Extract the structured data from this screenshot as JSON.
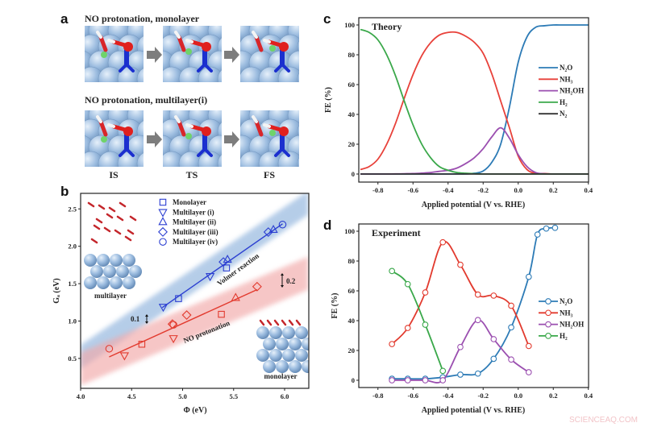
{
  "panel_a": {
    "letter": "a",
    "row1_title": "NO protonation, monolayer",
    "row2_title": "NO protonation, multilayer(i)",
    "states": [
      "IS",
      "TS",
      "FS"
    ]
  },
  "chart_data": [
    {
      "panel": "b",
      "type": "scatter",
      "xlabel": "Φ (eV)",
      "ylabel": "Gₐ (eV)",
      "xlim": [
        4.0,
        6.23
      ],
      "ylim": [
        0.1,
        2.7
      ],
      "xticks": [
        4.0,
        4.5,
        5.0,
        5.5,
        6.0
      ],
      "yticks": [
        0.5,
        1.0,
        1.5,
        2.0,
        2.5
      ],
      "legend": "top-center",
      "colors": {
        "volmer": "#2b3ed1",
        "no_protonation": "#e23a2e",
        "volmer_band": "#8fb3dd",
        "no_protonation_band": "#f2a9a9"
      },
      "series": [
        {
          "name": "Monolayer",
          "marker": "square",
          "volmer": [
            [
              4.96,
              1.3
            ],
            [
              5.43,
              1.71
            ]
          ],
          "no_protonation": [
            [
              4.6,
              0.69
            ],
            [
              5.38,
              1.09
            ]
          ]
        },
        {
          "name": "Multilayer (i)",
          "marker": "triangle-down",
          "volmer": [
            [
              4.81,
              1.19
            ],
            [
              5.27,
              1.6
            ]
          ],
          "no_protonation": [
            [
              4.43,
              0.54
            ],
            [
              4.91,
              0.77
            ]
          ]
        },
        {
          "name": "Multilayer (ii)",
          "marker": "triangle-up",
          "volmer": [
            [
              5.44,
              1.82
            ],
            [
              5.89,
              2.22
            ]
          ],
          "no_protonation": [
            [
              5.52,
              1.31
            ]
          ]
        },
        {
          "name": "Multilayer (iii)",
          "marker": "diamond",
          "volmer": [
            [
              5.4,
              1.79
            ],
            [
              5.84,
              2.19
            ]
          ],
          "no_protonation": [
            [
              4.9,
              0.96
            ],
            [
              5.04,
              1.08
            ],
            [
              5.73,
              1.46
            ]
          ]
        },
        {
          "name": "Multilayer (iv)",
          "marker": "circle",
          "volmer": [
            [
              5.98,
              2.29
            ]
          ],
          "no_protonation": [
            [
              4.28,
              0.63
            ],
            [
              4.91,
              0.95
            ]
          ]
        }
      ],
      "fits": [
        {
          "reaction": "volmer",
          "x": [
            4.8,
            5.98
          ],
          "y": [
            1.18,
            2.3
          ]
        },
        {
          "reaction": "no_protonation",
          "x": [
            4.28,
            5.73
          ],
          "y": [
            0.52,
            1.42
          ]
        }
      ],
      "bands": [
        {
          "reaction": "volmer",
          "x": [
            4.0,
            6.23
          ],
          "y": [
            0.52,
            2.58
          ],
          "width": 0.16
        },
        {
          "reaction": "no_protonation",
          "x": [
            4.0,
            6.23
          ],
          "y": [
            0.36,
            1.64
          ],
          "width": 0.22
        }
      ],
      "annotations": {
        "volmer": "Volmer reaction",
        "no_protonation": "NO protonation",
        "spread_volmer": "0.1",
        "spread_no": "0.2",
        "inset_multilayer": "multilayer",
        "inset_monolayer": "monolayer"
      }
    },
    {
      "panel": "c",
      "type": "line",
      "title": "Theory",
      "xlabel": "Applied potential (V vs. RHE)",
      "ylabel": "FE (%)",
      "xlim": [
        -0.91,
        0.4
      ],
      "ylim": [
        -5,
        103
      ],
      "xticks": [
        -0.8,
        -0.6,
        -0.4,
        -0.2,
        0.0,
        0.2,
        0.4
      ],
      "yticks": [
        0,
        20,
        40,
        60,
        80,
        100
      ],
      "legend": "right",
      "x": [
        -0.9,
        -0.85,
        -0.8,
        -0.75,
        -0.7,
        -0.65,
        -0.6,
        -0.55,
        -0.5,
        -0.45,
        -0.4,
        -0.35,
        -0.3,
        -0.25,
        -0.2,
        -0.15,
        -0.1,
        -0.05,
        0,
        0.05,
        0.1,
        0.15,
        0.2,
        0.25,
        0.3,
        0.35,
        0.4
      ],
      "series": [
        {
          "name": "N₂O",
          "color": "#2d7bb6",
          "values": [
            0,
            0,
            0,
            0,
            0,
            0,
            0,
            0,
            0,
            0,
            0,
            0,
            0,
            0.5,
            2,
            8,
            20,
            45,
            75,
            92,
            98.5,
            99.5,
            100,
            100,
            100,
            100,
            100
          ]
        },
        {
          "name": "NH₃",
          "color": "#e8413a",
          "values": [
            3,
            5,
            10,
            20,
            33.9,
            50.8,
            66.7,
            79.4,
            88,
            93.2,
            95,
            95,
            92.5,
            88.3,
            81,
            67,
            49,
            31,
            12,
            3,
            0.5,
            0.3,
            0,
            0,
            0,
            0,
            0
          ]
        },
        {
          "name": "NH₂OH",
          "color": "#9b4fb0",
          "values": [
            0,
            0,
            0,
            0,
            0.1,
            0.2,
            0.3,
            0.6,
            1,
            1.8,
            2.5,
            4,
            7,
            11,
            17,
            25,
            31,
            24,
            13,
            5,
            1,
            0.2,
            0,
            0,
            0,
            0,
            0
          ]
        },
        {
          "name": "H₂",
          "color": "#3aa84a",
          "values": [
            97,
            95,
            90,
            80,
            66,
            49,
            33,
            20,
            11,
            5,
            2.5,
            1,
            0.5,
            0.2,
            0,
            0,
            0,
            0,
            0,
            0,
            0,
            0,
            0,
            0,
            0,
            0,
            0
          ]
        },
        {
          "name": "N₂",
          "color": "#333333",
          "values": [
            0,
            0,
            0,
            0,
            0,
            0,
            0,
            0,
            0,
            0,
            0,
            0,
            0,
            0,
            0,
            0,
            0,
            0,
            0,
            0,
            0,
            0,
            0,
            0,
            0,
            0,
            0
          ]
        }
      ]
    },
    {
      "panel": "d",
      "type": "line",
      "title": "Experiment",
      "xlabel": "Applied potential (V vs. RHE)",
      "ylabel": "FE (%)",
      "xlim": [
        -0.91,
        0.4
      ],
      "ylim": [
        -5,
        105
      ],
      "xticks": [
        -0.8,
        -0.6,
        -0.4,
        -0.2,
        0.0,
        0.2,
        0.4
      ],
      "yticks": [
        0,
        20,
        40,
        60,
        80,
        100
      ],
      "legend": "right",
      "series": [
        {
          "name": "N₂O",
          "color": "#2d7bb6",
          "x": [
            -0.72,
            -0.63,
            -0.53,
            -0.43,
            -0.33,
            -0.23,
            -0.14,
            -0.04,
            0.06,
            0.11,
            0.16,
            0.21
          ],
          "values": [
            1,
            1,
            1,
            2,
            3.8,
            4.5,
            14.4,
            35.5,
            69.4,
            97.8,
            101.8,
            102.3
          ]
        },
        {
          "name": "NH₃",
          "color": "#e23a2e",
          "x": [
            -0.72,
            -0.63,
            -0.53,
            -0.43,
            -0.33,
            -0.23,
            -0.14,
            -0.04,
            0.06
          ],
          "values": [
            24.3,
            35.1,
            58.9,
            92.6,
            77.5,
            57.5,
            56.8,
            50,
            23
          ]
        },
        {
          "name": "NH₂OH",
          "color": "#9b4fb0",
          "x": [
            -0.72,
            -0.63,
            -0.53,
            -0.43,
            -0.33,
            -0.23,
            -0.14,
            -0.04,
            0.06
          ],
          "values": [
            0,
            0,
            0,
            0,
            22.3,
            40.4,
            27.6,
            13.9,
            5.4
          ]
        },
        {
          "name": "H₂",
          "color": "#3aa84a",
          "x": [
            -0.72,
            -0.63,
            -0.53,
            -0.43
          ],
          "values": [
            73.3,
            64.5,
            37.3,
            6.3
          ]
        }
      ]
    }
  ],
  "watermark": "SCIENCEAQ.COM"
}
